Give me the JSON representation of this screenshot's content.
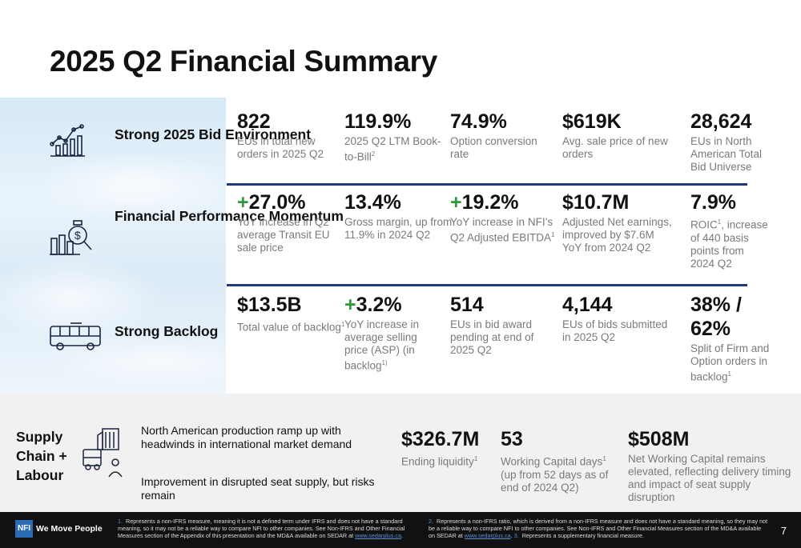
{
  "title": "2025 Q2 Financial Summary",
  "sections": [
    {
      "label": "Strong 2025 Bid Environment",
      "icon": "rising-chart-icon",
      "metrics": [
        {
          "value": "822",
          "plus": "",
          "desc": "EUs in total new orders in 2025 Q2",
          "sup": ""
        },
        {
          "value": "119.9%",
          "plus": "",
          "desc": "2025 Q2 LTM Book-to-Bill",
          "sup": "2"
        },
        {
          "value": "74.9%",
          "plus": "",
          "desc": "Option conversion rate",
          "sup": ""
        },
        {
          "value": "$619K",
          "plus": "",
          "desc": "Avg. sale price of new orders",
          "sup": ""
        },
        {
          "value": "28,624",
          "plus": "",
          "desc": "EUs in North American Total Bid Universe",
          "sup": ""
        }
      ]
    },
    {
      "label": "Financial Performance Momentum",
      "icon": "money-bag-chart-icon",
      "metrics": [
        {
          "value": "27.0%",
          "plus": "+",
          "desc": "YoY increase in Q2 average Transit EU sale price",
          "sup": ""
        },
        {
          "value": "13.4%",
          "plus": "",
          "desc": "Gross margin, up from 11.9% in 2024 Q2",
          "sup": ""
        },
        {
          "value": "19.2%",
          "plus": "+",
          "desc": "YoY increase in NFI’s Q2 Adjusted EBITDA",
          "sup": "1"
        },
        {
          "value": "$10.7M",
          "plus": "",
          "desc": "Adjusted Net earnings, improved by $7.6M YoY from 2024 Q2",
          "sup": ""
        },
        {
          "value": "7.9%",
          "plus": "",
          "desc": "ROIC",
          "sup": "1",
          "desc_after": ", increase of 440 basis points from 2024 Q2"
        }
      ]
    },
    {
      "label": "Strong Backlog",
      "icon": "bus-icon",
      "metrics": [
        {
          "value": "$13.5B",
          "plus": "",
          "desc": "Total value of backlog",
          "sup": "1"
        },
        {
          "value": "3.2%",
          "plus": "+",
          "desc": "YoY increase in average selling price (ASP) (in backlog",
          "sup": "1)"
        },
        {
          "value": "514",
          "plus": "",
          "desc": "EUs in bid award pending at end of 2025 Q2",
          "sup": ""
        },
        {
          "value": "4,144",
          "plus": "",
          "desc": "EUs of bids submitted in 2025 Q2",
          "sup": ""
        },
        {
          "value": "38% / 62%",
          "plus": "",
          "desc": "Split of Firm and Option orders in backlog",
          "sup": "1"
        }
      ]
    }
  ],
  "supply": {
    "label": "Supply Chain + Labour",
    "text1": "North American production ramp up with headwinds in international market demand",
    "text2": "Improvement in disrupted seat supply, but risks remain",
    "metrics": [
      {
        "value": "$326.7M",
        "desc": "Ending liquidity",
        "sup": "1"
      },
      {
        "value": "53",
        "desc": "Working Capital days",
        "sup": "1",
        "desc_after": " (up from 52 days as of end of 2024 Q2)"
      },
      {
        "value": "$508M",
        "desc": "Net Working Capital remains elevated, reflecting delivery timing and impact of seat supply disruption",
        "sup": ""
      }
    ]
  },
  "footer": {
    "logo": "NFI",
    "tagline": "We Move People",
    "fn1_num": "1.",
    "fn1": "Represents a non-IFRS measure, meaning it is not a defined term under IFRS and does not have a standard meaning, so it may not be a reliable way to compare NFI to other companies. See Non-IFRS and Other Financial Measures section of the Appendix of this presentation and the MD&A available on SEDAR at",
    "fn1_link": "www.sedarplus.ca",
    "fn2_num": "2.",
    "fn2": "Represents a non-IFRS ratio, which is derived from a non-IFRS measure and does not have a standard meaning, so they may not be a reliable way to compare NFI to other companies. See Non-IFRS and Other Financial Measures section of the MD&A available on SEDAR at",
    "fn2_link": "www.sedarplus.ca",
    "fn3_num": "3.",
    "fn3": "Represents a supplementary financial measure.",
    "page": "7"
  }
}
